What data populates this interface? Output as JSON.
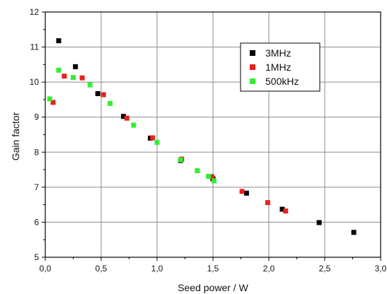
{
  "chart_data": {
    "type": "scatter",
    "title": "",
    "xlabel": "Seed power / W",
    "ylabel": "Gain factor",
    "xlim": [
      0.0,
      3.0
    ],
    "ylim": [
      5,
      12
    ],
    "grid": true,
    "legend_position": "top-right",
    "x_ticks": [
      0.0,
      0.5,
      1.0,
      1.5,
      2.0,
      2.5,
      3.0
    ],
    "x_tick_labels": [
      "0,0",
      "0,5",
      "1,0",
      "1,5",
      "2,0",
      "2,5",
      "3,0"
    ],
    "y_ticks": [
      5,
      6,
      7,
      8,
      9,
      10,
      11,
      12
    ],
    "y_tick_labels": [
      "5",
      "6",
      "7",
      "8",
      "9",
      "10",
      "11",
      "12"
    ],
    "series": [
      {
        "name": "3MHz",
        "color": "#000000",
        "points": [
          {
            "x": 0.12,
            "y": 11.18
          },
          {
            "x": 0.27,
            "y": 10.44
          },
          {
            "x": 0.47,
            "y": 9.67
          },
          {
            "x": 0.7,
            "y": 9.02
          },
          {
            "x": 0.94,
            "y": 8.4
          },
          {
            "x": 1.21,
            "y": 7.76
          },
          {
            "x": 1.5,
            "y": 7.24
          },
          {
            "x": 1.8,
            "y": 6.83
          },
          {
            "x": 2.12,
            "y": 6.37
          },
          {
            "x": 2.45,
            "y": 5.99
          },
          {
            "x": 2.76,
            "y": 5.71
          }
        ]
      },
      {
        "name": "1MHz",
        "color": "#e8221c",
        "points": [
          {
            "x": 0.07,
            "y": 9.42
          },
          {
            "x": 0.17,
            "y": 10.17
          },
          {
            "x": 0.33,
            "y": 10.12
          },
          {
            "x": 0.52,
            "y": 9.64
          },
          {
            "x": 0.73,
            "y": 8.97
          },
          {
            "x": 0.96,
            "y": 8.41
          },
          {
            "x": 1.22,
            "y": 7.8
          },
          {
            "x": 1.49,
            "y": 7.3
          },
          {
            "x": 1.76,
            "y": 6.88
          },
          {
            "x": 1.99,
            "y": 6.56
          },
          {
            "x": 2.15,
            "y": 6.32
          }
        ]
      },
      {
        "name": "500kHz",
        "color": "#33ee33",
        "points": [
          {
            "x": 0.04,
            "y": 9.52
          },
          {
            "x": 0.12,
            "y": 10.34
          },
          {
            "x": 0.25,
            "y": 10.13
          },
          {
            "x": 0.4,
            "y": 9.92
          },
          {
            "x": 0.58,
            "y": 9.39
          },
          {
            "x": 0.79,
            "y": 8.77
          },
          {
            "x": 1.0,
            "y": 8.28
          },
          {
            "x": 1.21,
            "y": 7.78
          },
          {
            "x": 1.36,
            "y": 7.47
          },
          {
            "x": 1.46,
            "y": 7.31
          },
          {
            "x": 1.51,
            "y": 7.18
          }
        ]
      }
    ]
  },
  "axes_color": "#000000",
  "grid_color": "#8c8c8c"
}
